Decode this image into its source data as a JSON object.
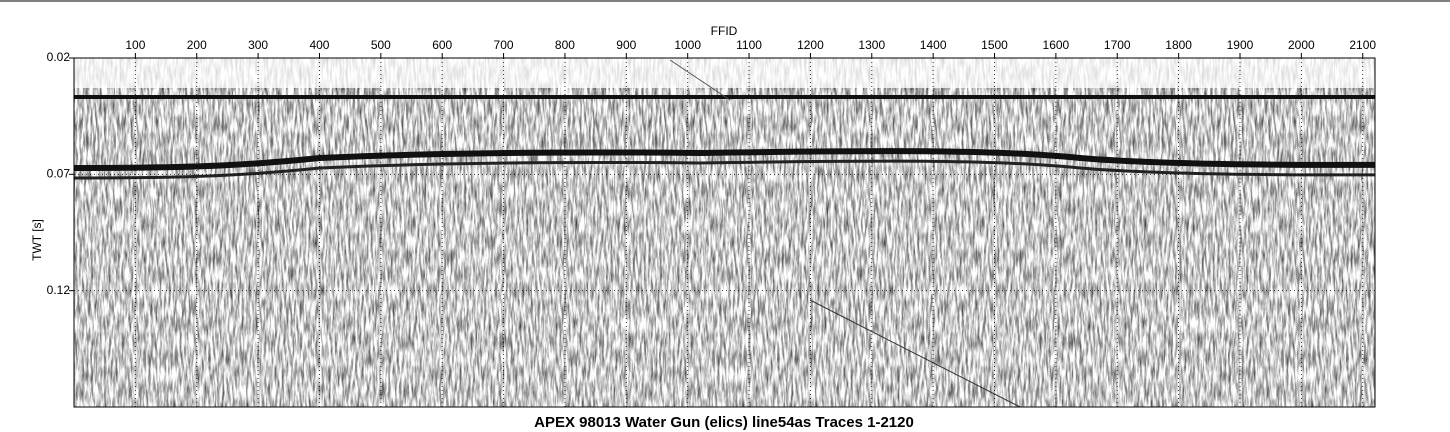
{
  "chart_data": {
    "type": "seismic",
    "title": "APEX 98013 Water Gun (elics) line54as Traces 1-2120",
    "x_label": "FFID",
    "y_label": "TWT [s]",
    "xlim": [
      0,
      2120
    ],
    "xticks": [
      100,
      200,
      300,
      400,
      500,
      600,
      700,
      800,
      900,
      1000,
      1100,
      1200,
      1300,
      1400,
      1500,
      1600,
      1700,
      1800,
      1900,
      2000,
      2100
    ],
    "ylim": [
      0.17,
      0.02
    ],
    "yticks": [
      0.02,
      0.07,
      0.12
    ],
    "grid": true
  }
}
